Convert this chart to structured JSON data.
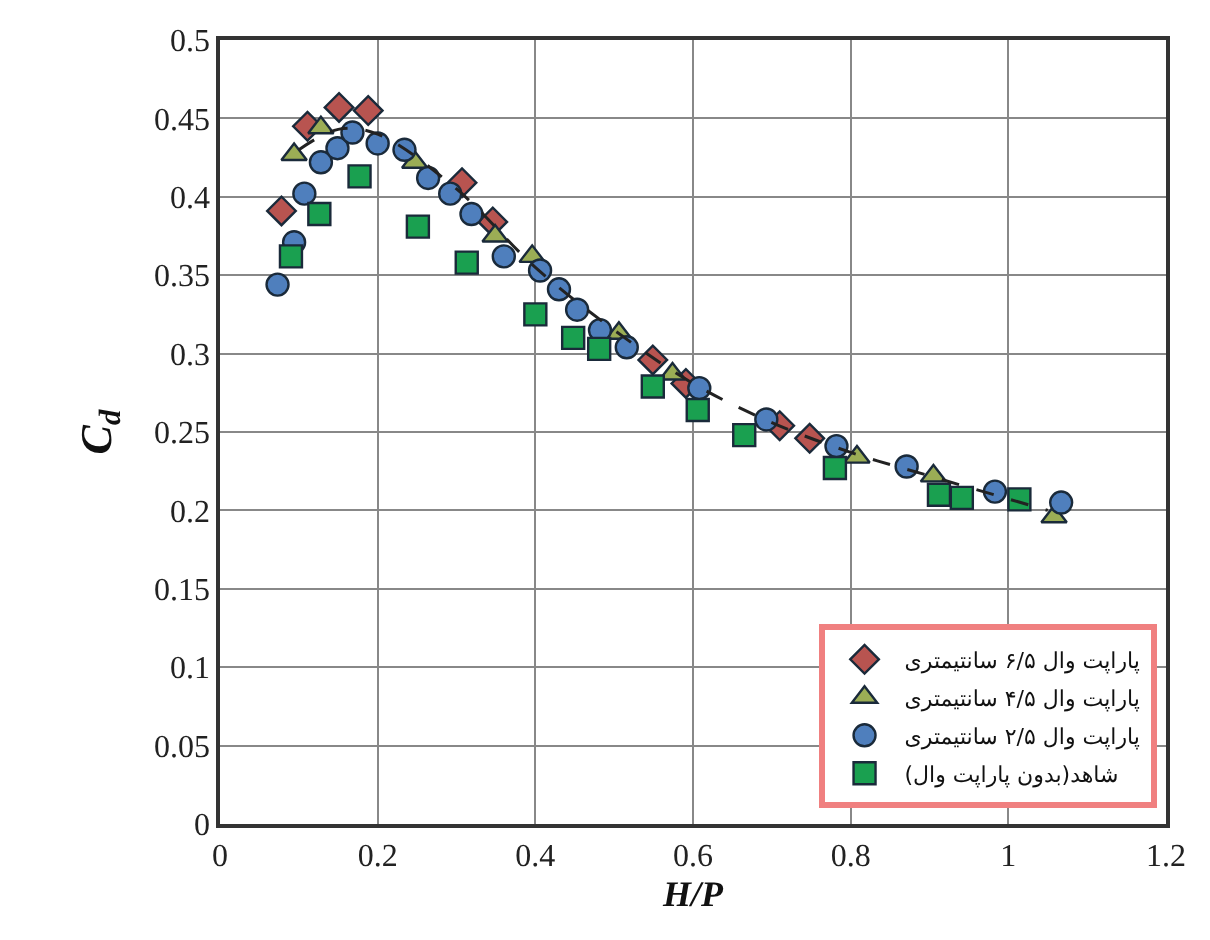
{
  "chart_data": {
    "type": "scatter",
    "xlabel": "H/P",
    "ylabel": "C$_{d}$",
    "xlim": [
      0,
      1.2
    ],
    "xticks": [
      0,
      0.2,
      0.4,
      0.6,
      0.8,
      1,
      1.2
    ],
    "ylim": [
      0,
      0.5
    ],
    "yticks": [
      0,
      0.05,
      0.1,
      0.15,
      0.2,
      0.25,
      0.3,
      0.35,
      0.4,
      0.45,
      0.5
    ],
    "grid": true,
    "legend": "bottom right",
    "series": [
      {
        "name": "پاراپت وال ۶/۵ سانتیمتری",
        "color": "#b85450",
        "marker": "diamond",
        "x": [
          0.078,
          0.111,
          0.151,
          0.188,
          0.217,
          0.307,
          0.346,
          0.549,
          0.591,
          0.71,
          0.748
        ],
        "values": [
          0.391,
          0.445,
          0.457,
          0.455,
          null,
          0.409,
          0.384,
          0.296,
          0.281,
          0.254,
          0.246
        ]
      },
      {
        "name": "پاراپت وال ۴/۵ سانتیمتری",
        "color": "#9bad55",
        "marker": "triangle",
        "x": [
          0.094,
          0.128,
          0.217,
          0.247,
          0.349,
          0.396,
          0.506,
          0.574,
          0.808,
          0.905,
          1.058
        ],
        "values": [
          0.427,
          0.444,
          null,
          0.422,
          0.375,
          0.362,
          0.313,
          0.287,
          0.234,
          0.222,
          0.196
        ]
      },
      {
        "name": "پاراپت وال ۲/۵ سانتیمتری",
        "color": "#4f7fbd",
        "marker": "circle",
        "x": [
          0.073,
          0.094,
          0.107,
          0.128,
          0.149,
          0.168,
          0.2,
          0.234,
          0.264,
          0.292,
          0.319,
          0.36,
          0.406,
          0.43,
          0.453,
          0.482,
          0.516,
          0.608,
          0.693,
          0.782,
          0.871,
          0.983,
          1.067
        ],
        "values": [
          0.344,
          0.371,
          0.402,
          0.422,
          0.431,
          0.441,
          0.434,
          0.43,
          0.412,
          0.402,
          0.389,
          0.362,
          0.353,
          0.341,
          0.328,
          0.315,
          0.304,
          0.278,
          0.258,
          0.241,
          0.228,
          0.212,
          0.205
        ]
      },
      {
        "name": "شاهد(بدون پاراپت وال)",
        "color": "#1aa050",
        "marker": "square",
        "x": [
          0.09,
          0.126,
          0.177,
          0.251,
          0.313,
          0.4,
          0.448,
          0.481,
          0.549,
          0.606,
          0.665,
          0.78,
          0.912,
          0.941,
          1.014
        ],
        "values": [
          0.362,
          0.389,
          0.413,
          0.381,
          0.358,
          0.325,
          0.31,
          0.303,
          0.279,
          0.264,
          0.248,
          0.227,
          0.21,
          0.208,
          0.207
        ]
      },
      {
        "type": "line",
        "color": "#222222",
        "line_style": "dashed",
        "x": [
          0.1,
          0.15,
          0.2,
          0.3,
          0.4,
          0.5,
          0.6,
          0.7,
          0.8,
          0.9,
          1.05
        ],
        "values": [
          0.43,
          0.443,
          0.44,
          0.405,
          0.355,
          0.315,
          0.281,
          0.256,
          0.237,
          0.222,
          0.2
        ]
      }
    ]
  }
}
